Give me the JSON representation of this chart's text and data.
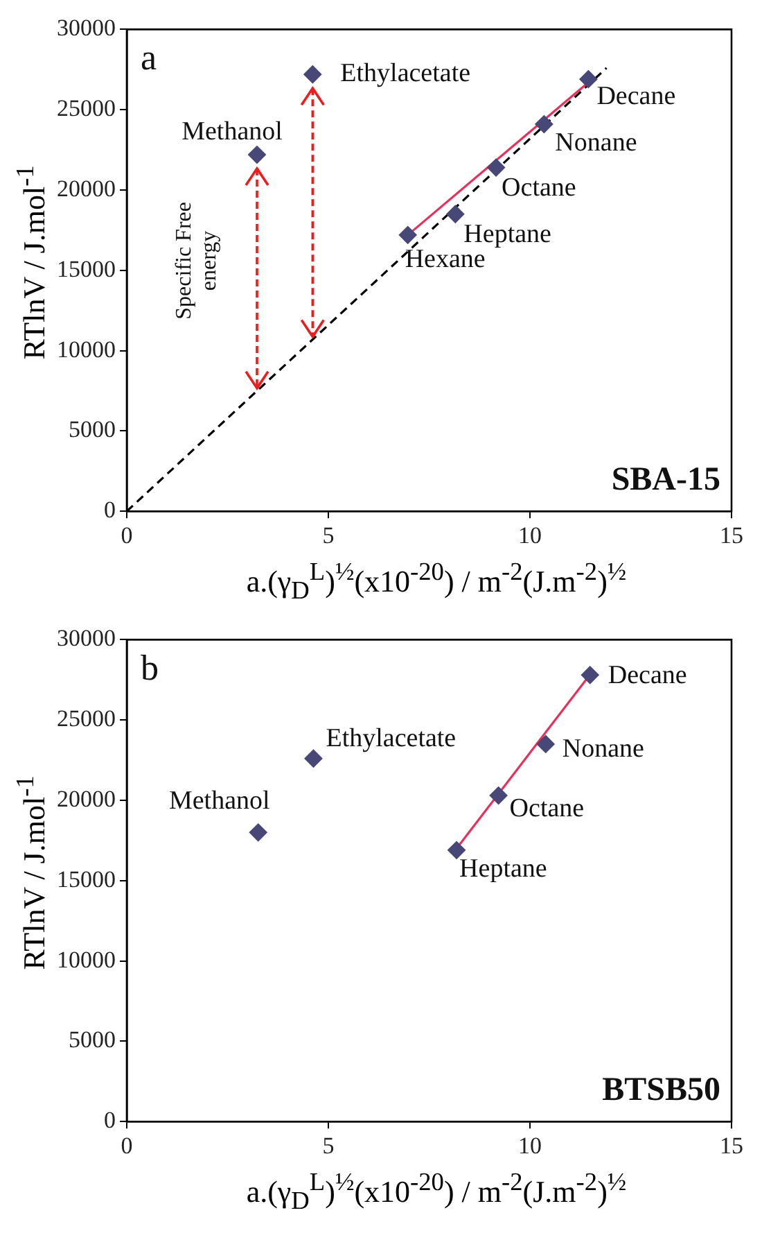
{
  "chart_data": [
    {
      "type": "scatter",
      "grid": false,
      "legend": false,
      "xlabel": "a.(γ$_{D}$$^{L}$)$^{½}$(x10$^{-20}$) / m$^{-2}$(J.m$^{-2}$)$^{½}$",
      "ylabel": "RTlnV / J.mol$^{-1}$",
      "xlim": [
        0,
        15
      ],
      "xticks": [
        0,
        5,
        10,
        15
      ],
      "ylim": [
        0,
        30000
      ],
      "yticks": [
        0,
        5000,
        10000,
        15000,
        20000,
        25000,
        30000
      ],
      "series": [
        {
          "type": "scatter",
          "marker": "diamond",
          "color": "#484878",
          "x": [
            3.23,
            4.61
          ],
          "values": [
            22200,
            27200
          ]
        },
        {
          "type": "scatter",
          "marker": "diamond",
          "color": "#484878",
          "x": [
            6.97,
            8.15,
            9.16,
            10.35,
            11.45
          ],
          "values": [
            17200,
            18500,
            21400,
            24100,
            26900
          ]
        },
        {
          "type": "line",
          "marker": "none",
          "color": "#e8305a",
          "line_style": "solid",
          "x": [
            6.97,
            11.45
          ],
          "values": [
            17200,
            26700
          ]
        },
        {
          "type": "line",
          "marker": "none",
          "color": "#000000",
          "line_style": "dashed",
          "x": [
            0,
            11.9
          ],
          "values": [
            0,
            27600
          ]
        }
      ],
      "annotations": [
        "a",
        "SBA-15",
        "Specific Free energy",
        {
          "text": "Methanol",
          "x": 3.23,
          "y": 22200
        },
        {
          "text": "Ethylacetate",
          "x": 4.61,
          "y": 27200
        },
        {
          "text": "Hexane",
          "x": 6.97,
          "y": 17200
        },
        {
          "text": "Heptane",
          "x": 8.15,
          "y": 18500
        },
        {
          "text": "Octane",
          "x": 9.16,
          "y": 21400
        },
        {
          "text": "Nonane",
          "x": 10.35,
          "y": 24100
        },
        {
          "text": "Decane",
          "x": 11.45,
          "y": 26900
        }
      ]
    },
    {
      "type": "scatter",
      "grid": false,
      "legend": false,
      "xlabel": "a.(γ$_{D}$$^{L}$)$^{½}$(x10$^{-20}$) / m$^{-2}$(J.m$^{-2}$)$^{½}$",
      "ylabel": "RTlnV / J.mol$^{-1}$",
      "xlim": [
        0,
        15
      ],
      "xticks": [
        0,
        5,
        10,
        15
      ],
      "ylim": [
        0,
        30000
      ],
      "yticks": [
        0,
        5000,
        10000,
        15000,
        20000,
        25000,
        30000
      ],
      "series": [
        {
          "type": "scatter",
          "marker": "diamond",
          "color": "#484878",
          "x": [
            3.26,
            4.63
          ],
          "values": [
            18000,
            22600
          ]
        },
        {
          "type": "scatter",
          "marker": "diamond",
          "color": "#484878",
          "x": [
            8.18,
            9.22,
            10.39,
            11.49
          ],
          "values": [
            16900,
            20300,
            23500,
            27800
          ]
        },
        {
          "type": "line",
          "marker": "none",
          "color": "#e8305a",
          "line_style": "solid",
          "x": [
            8.18,
            11.45
          ],
          "values": [
            17000,
            27700
          ]
        }
      ],
      "annotations": [
        "b",
        "BTSB50",
        {
          "text": "Methanol",
          "x": 3.26,
          "y": 18000
        },
        {
          "text": "Ethylacetate",
          "x": 4.63,
          "y": 22600
        },
        {
          "text": "Heptane",
          "x": 8.18,
          "y": 16900
        },
        {
          "text": "Octane",
          "x": 9.22,
          "y": 20300
        },
        {
          "text": "Nonane",
          "x": 10.39,
          "y": 23500
        },
        {
          "text": "Decane",
          "x": 11.49,
          "y": 27800
        }
      ]
    }
  ]
}
